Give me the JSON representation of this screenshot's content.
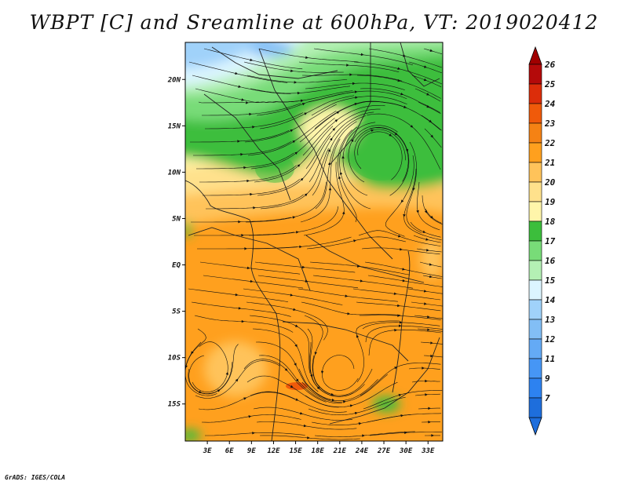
{
  "title": "WBPT [C] and Sreamline at 600hPa, VT: 2019020412",
  "credit": "GrADS: IGES/COLA",
  "map": {
    "lon_range": [
      0,
      35
    ],
    "lat_range": [
      -19,
      24
    ],
    "lat_ticks": [
      {
        "value": 20,
        "label": "20N"
      },
      {
        "value": 15,
        "label": "15N"
      },
      {
        "value": 10,
        "label": "10N"
      },
      {
        "value": 5,
        "label": "5N"
      },
      {
        "value": 0,
        "label": "EQ"
      },
      {
        "value": -5,
        "label": "5S"
      },
      {
        "value": -10,
        "label": "10S"
      },
      {
        "value": -15,
        "label": "15S"
      }
    ],
    "lon_ticks": [
      {
        "value": 3,
        "label": "3E"
      },
      {
        "value": 6,
        "label": "6E"
      },
      {
        "value": 9,
        "label": "9E"
      },
      {
        "value": 12,
        "label": "12E"
      },
      {
        "value": 15,
        "label": "15E"
      },
      {
        "value": 18,
        "label": "18E"
      },
      {
        "value": 21,
        "label": "21E"
      },
      {
        "value": 24,
        "label": "24E"
      },
      {
        "value": 27,
        "label": "27E"
      },
      {
        "value": 30,
        "label": "30E"
      },
      {
        "value": 33,
        "label": "33E"
      }
    ]
  },
  "colorbar": {
    "levels": [
      {
        "label": "7",
        "color": "#1e6edc"
      },
      {
        "label": "9",
        "color": "#2d82f0"
      },
      {
        "label": "11",
        "color": "#4696f5"
      },
      {
        "label": "12",
        "color": "#64aaf5"
      },
      {
        "label": "13",
        "color": "#82bef5"
      },
      {
        "label": "14",
        "color": "#a0d2fa"
      },
      {
        "label": "15",
        "color": "#dcf5ff"
      },
      {
        "label": "16",
        "color": "#b4f0b4"
      },
      {
        "label": "17",
        "color": "#78dc78"
      },
      {
        "label": "18",
        "color": "#3cbe3c"
      },
      {
        "label": "19",
        "color": "#fff5aa"
      },
      {
        "label": "20",
        "color": "#ffe18c"
      },
      {
        "label": "21",
        "color": "#ffc35a"
      },
      {
        "label": "22",
        "color": "#ffa01e"
      },
      {
        "label": "23",
        "color": "#f58214"
      },
      {
        "label": "24",
        "color": "#f05a0a"
      },
      {
        "label": "25",
        "color": "#dc2d0a"
      },
      {
        "label": "26",
        "color": "#b40a0a"
      }
    ],
    "under_color": "#1e6edc",
    "over_color": "#a00000"
  }
}
